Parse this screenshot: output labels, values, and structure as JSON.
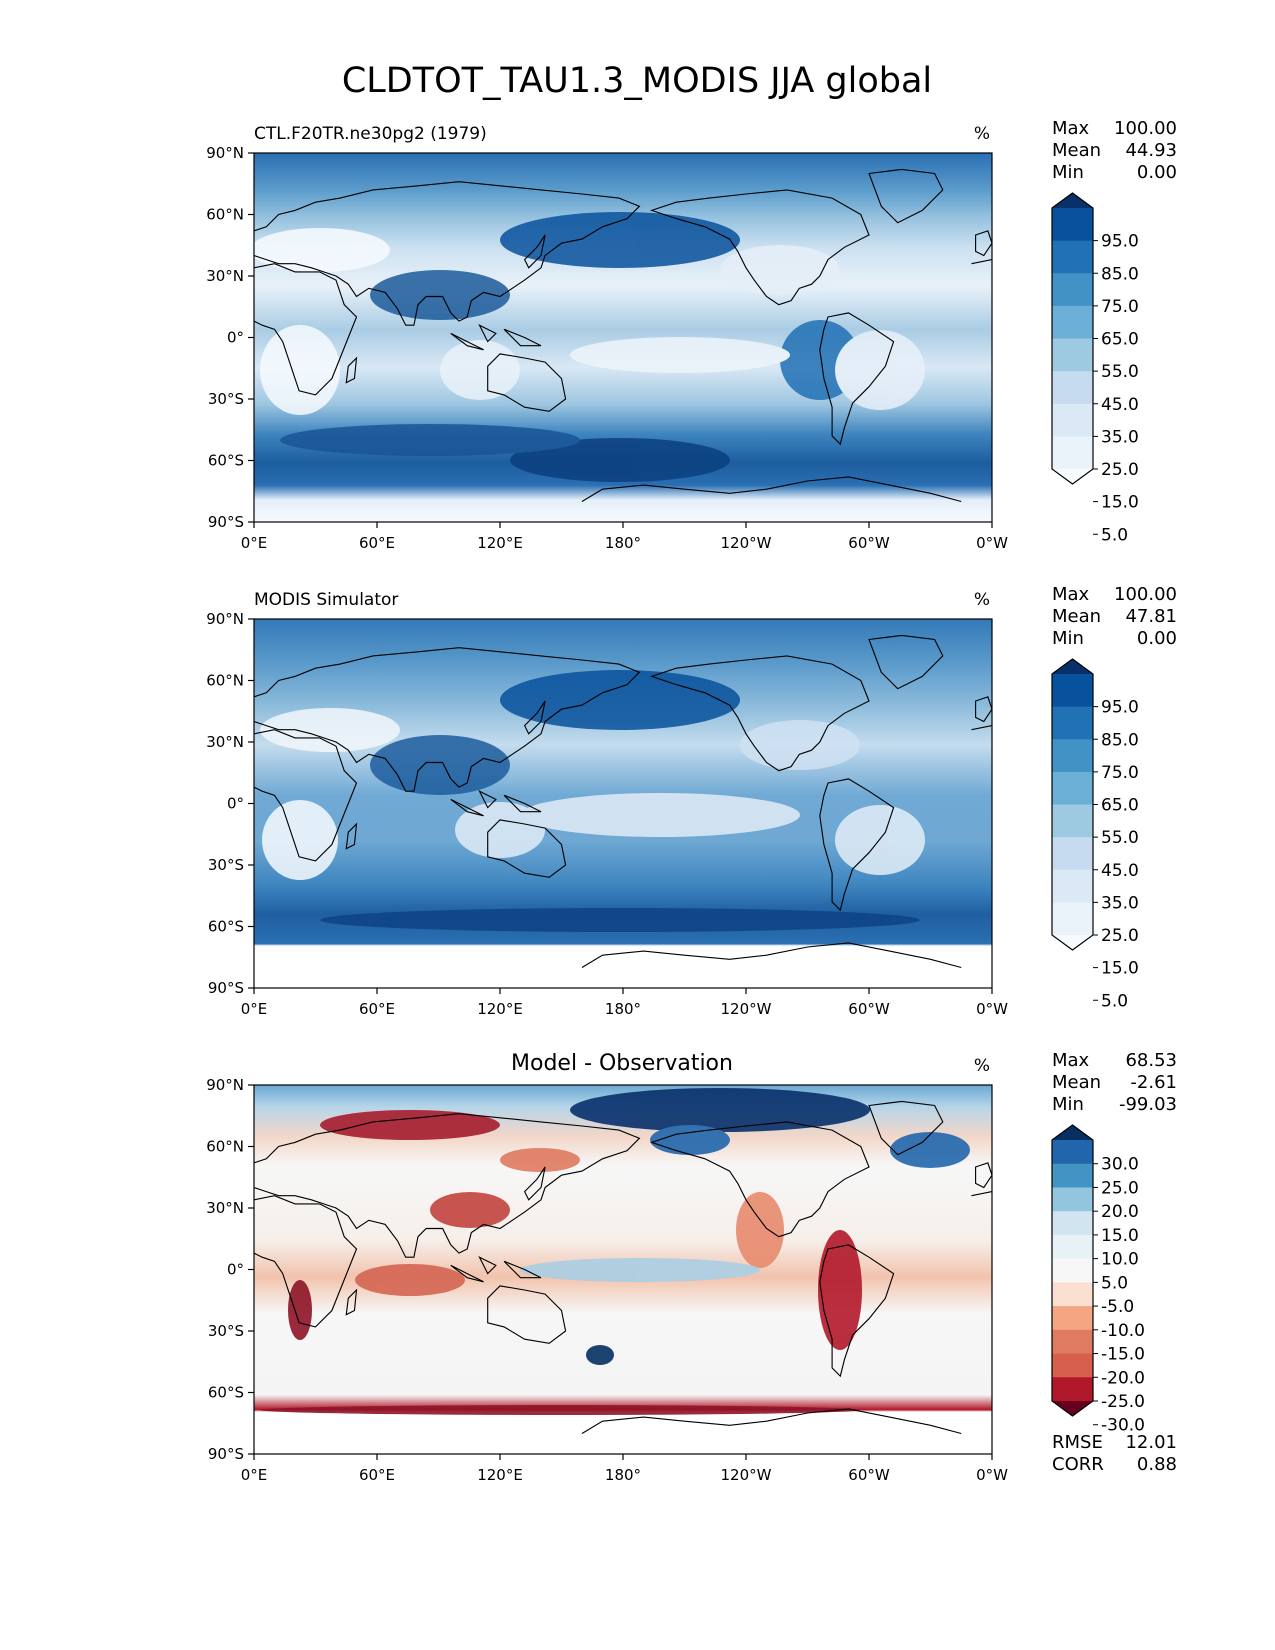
{
  "title": "CLDTOT_TAU1.3_MODIS JJA global",
  "units": "%",
  "x_ticks": [
    "0°E",
    "60°E",
    "120°E",
    "180°",
    "120°W",
    "60°W",
    "0°W"
  ],
  "y_ticks": [
    "90°N",
    "60°N",
    "30°N",
    "0°",
    "30°S",
    "60°S",
    "90°S"
  ],
  "stat_labels": {
    "max": "Max",
    "mean": "Mean",
    "min": "Min",
    "rmse": "RMSE",
    "corr": "CORR"
  },
  "chart_data": [
    {
      "type": "heatmap",
      "panel_title_left": "CTL.F20TR.ne30pg2 (1979)",
      "panel_title_center": "",
      "panel_title_right": "%",
      "colormap": "Blues",
      "colorbar_levels": [
        "95.0",
        "85.0",
        "75.0",
        "65.0",
        "55.0",
        "45.0",
        "35.0",
        "25.0",
        "15.0",
        "5.0"
      ],
      "colorbar_colors": [
        "#08306b",
        "#08519c",
        "#2171b5",
        "#4292c6",
        "#6baed6",
        "#9ecae1",
        "#c6dbef",
        "#dbe9f6",
        "#eaf2fa",
        "#f7fbff"
      ],
      "stats": {
        "max": "100.00",
        "mean": "44.93",
        "min": "0.00"
      },
      "xlim": [
        0,
        360
      ],
      "ylim": [
        -90,
        90
      ]
    },
    {
      "type": "heatmap",
      "panel_title_left": "MODIS Simulator",
      "panel_title_center": "",
      "panel_title_right": "%",
      "colormap": "Blues",
      "colorbar_levels": [
        "95.0",
        "85.0",
        "75.0",
        "65.0",
        "55.0",
        "45.0",
        "35.0",
        "25.0",
        "15.0",
        "5.0"
      ],
      "colorbar_colors": [
        "#08306b",
        "#08519c",
        "#2171b5",
        "#4292c6",
        "#6baed6",
        "#9ecae1",
        "#c6dbef",
        "#dbe9f6",
        "#eaf2fa",
        "#f7fbff"
      ],
      "stats": {
        "max": "100.00",
        "mean": "47.81",
        "min": "0.00"
      },
      "xlim": [
        0,
        360
      ],
      "ylim": [
        -90,
        90
      ]
    },
    {
      "type": "heatmap",
      "panel_title_left": "",
      "panel_title_center": "Model - Observation",
      "panel_title_right": "%",
      "colormap": "RdBu",
      "colorbar_levels": [
        "30.0",
        "25.0",
        "20.0",
        "15.0",
        "10.0",
        "5.0",
        "-5.0",
        "-10.0",
        "-15.0",
        "-20.0",
        "-25.0",
        "-30.0"
      ],
      "colorbar_colors": [
        "#053061",
        "#2166ac",
        "#4393c3",
        "#92c5de",
        "#d1e5f0",
        "#e8f1f6",
        "#f7f7f7",
        "#fbe0d2",
        "#f4a582",
        "#e07a60",
        "#d6604d",
        "#b2182b",
        "#67001f"
      ],
      "stats": {
        "max": "68.53",
        "mean": "-2.61",
        "min": "-99.03",
        "rmse": "12.01",
        "corr": "0.88"
      },
      "xlim": [
        0,
        360
      ],
      "ylim": [
        -90,
        90
      ]
    }
  ]
}
